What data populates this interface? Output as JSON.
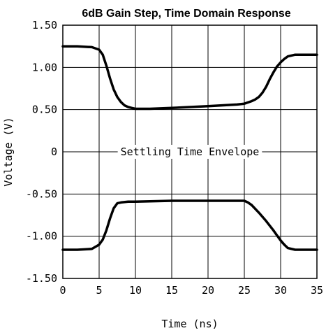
{
  "chart_data": {
    "type": "line",
    "title": "6dB Gain Step, Time Domain Response",
    "xlabel": "Time (ns)",
    "ylabel": "Voltage (V)",
    "xlim": [
      0,
      35
    ],
    "ylim": [
      -1.5,
      1.5
    ],
    "x_ticks": [
      0,
      5,
      10,
      15,
      20,
      25,
      30,
      35
    ],
    "x_tick_labels": [
      "0",
      "5",
      "10",
      "15",
      "20",
      "25",
      "30",
      "35"
    ],
    "y_ticks": [
      1.5,
      1.0,
      0.5,
      0,
      -0.5,
      -1.0,
      -1.5
    ],
    "y_tick_labels": [
      "1.50",
      "1.00",
      "0.50",
      "0",
      "-0.50",
      "-1.00",
      "-1.50"
    ],
    "grid": true,
    "annotations": [
      {
        "text": "Settling Time Envelope",
        "x": 17.5,
        "y": 0
      }
    ],
    "series": [
      {
        "x": [
          0,
          2,
          4,
          5,
          5.5,
          6,
          6.5,
          7,
          7.5,
          8,
          8.5,
          9,
          9.5,
          10,
          12,
          15,
          20,
          24,
          25,
          26,
          26.5,
          27,
          27.5,
          28,
          28.5,
          29,
          29.5,
          30,
          30.5,
          31,
          32,
          33,
          35
        ],
        "values": [
          1.25,
          1.25,
          1.24,
          1.21,
          1.15,
          1.02,
          0.87,
          0.74,
          0.65,
          0.59,
          0.55,
          0.53,
          0.52,
          0.51,
          0.51,
          0.52,
          0.54,
          0.56,
          0.57,
          0.6,
          0.62,
          0.65,
          0.7,
          0.77,
          0.86,
          0.94,
          1.01,
          1.06,
          1.1,
          1.13,
          1.15,
          1.15,
          1.15
        ]
      },
      {
        "x": [
          0,
          2,
          4,
          5,
          5.5,
          6,
          6.5,
          7,
          7.5,
          8,
          9,
          10,
          15,
          20,
          24,
          25,
          25.5,
          26,
          27,
          28,
          29,
          29.5,
          30,
          30.5,
          31,
          32,
          33,
          35
        ],
        "values": [
          -1.16,
          -1.16,
          -1.15,
          -1.1,
          -1.04,
          -0.93,
          -0.79,
          -0.67,
          -0.61,
          -0.6,
          -0.59,
          -0.59,
          -0.58,
          -0.58,
          -0.58,
          -0.58,
          -0.6,
          -0.63,
          -0.72,
          -0.82,
          -0.93,
          -0.99,
          -1.05,
          -1.1,
          -1.14,
          -1.16,
          -1.16,
          -1.16
        ]
      }
    ]
  }
}
